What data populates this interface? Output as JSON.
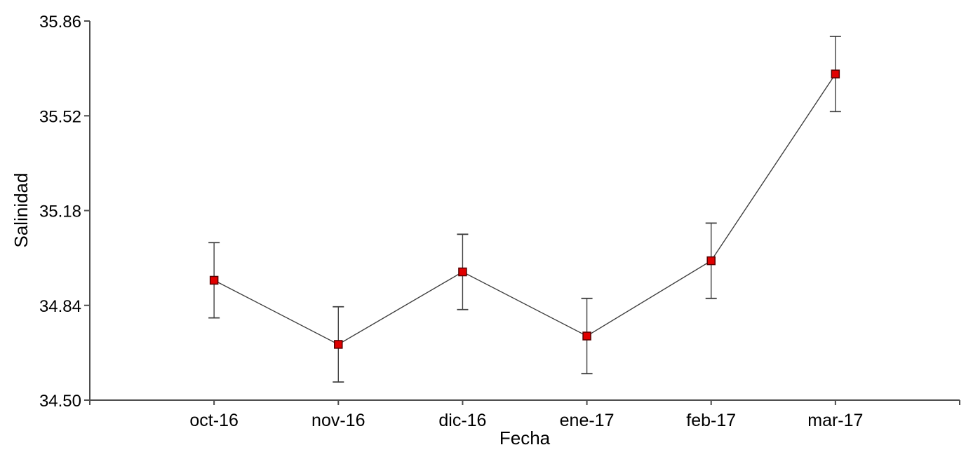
{
  "chart_data": {
    "type": "line",
    "title": "",
    "xlabel": "Fecha",
    "ylabel": "Salinidad",
    "categories": [
      "oct-16",
      "nov-16",
      "dic-16",
      "ene-17",
      "feb-17",
      "mar-17"
    ],
    "series": [
      {
        "name": "Salinidad",
        "values": [
          34.93,
          34.7,
          34.96,
          34.73,
          35.0,
          35.67
        ],
        "error": [
          0.135,
          0.135,
          0.135,
          0.135,
          0.135,
          0.135
        ]
      }
    ],
    "ylim": [
      34.5,
      35.86
    ],
    "yticks": [
      34.5,
      34.84,
      35.18,
      35.52,
      35.86
    ],
    "ytick_labels": [
      "34.50",
      "34.84",
      "35.18",
      "35.52",
      "35.86"
    ],
    "grid": false,
    "legend": false,
    "marker": "square",
    "error_bars": true,
    "colors": {
      "marker_fill": "#e10000",
      "marker_stroke": "#550000",
      "line": "#404040",
      "axis": "#4d4d4d",
      "text": "#000000"
    }
  }
}
